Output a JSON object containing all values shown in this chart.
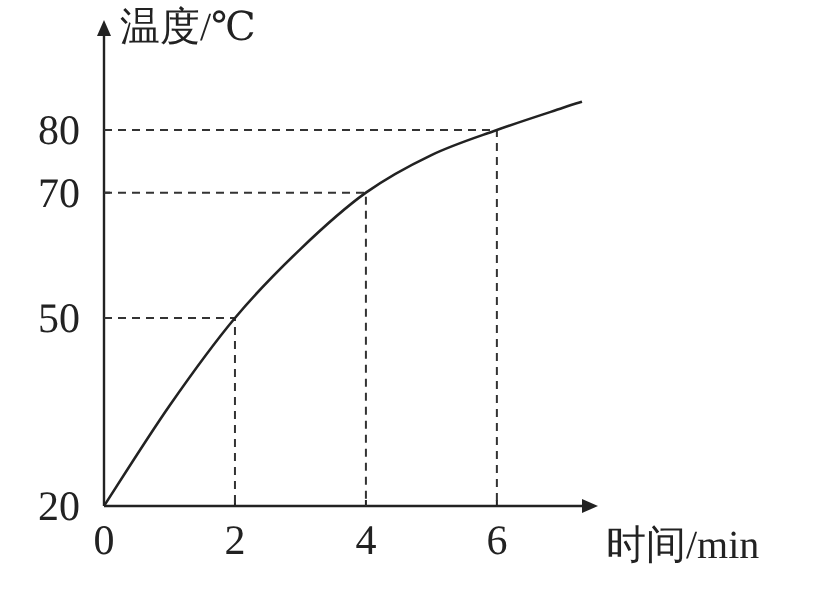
{
  "chart_data": {
    "type": "line",
    "xlabel": "时间/min",
    "ylabel": "温度/℃",
    "x": [
      0,
      1,
      2,
      3,
      4,
      5,
      6,
      7,
      7.3
    ],
    "series": [
      {
        "color": "#222222",
        "values": [
          20,
          36,
          50,
          61,
          70,
          76,
          80,
          83.5,
          84.5
        ]
      }
    ],
    "xlim": [
      0,
      7.3
    ],
    "ylim": [
      20,
      95
    ],
    "xticks": [
      0,
      2,
      4,
      6
    ],
    "yticks": [
      20,
      50,
      70,
      80
    ],
    "marker": "none",
    "line_style": "solid",
    "ref_lines": [
      {
        "axis": "x",
        "value": 2,
        "line_style": "dashed"
      },
      {
        "axis": "x",
        "value": 4,
        "line_style": "dashed"
      },
      {
        "axis": "x",
        "value": 6,
        "line_style": "dashed"
      }
    ]
  }
}
